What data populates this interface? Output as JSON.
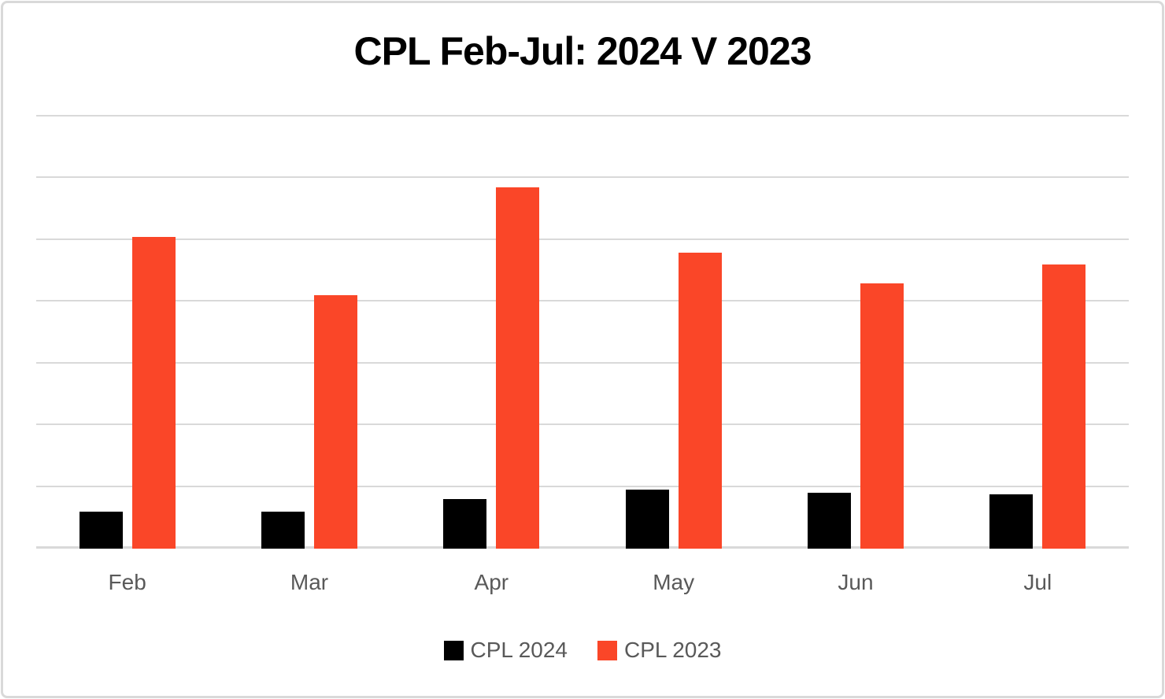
{
  "chart_data": {
    "type": "bar",
    "title": "CPL Feb-Jul: 2024 V 2023",
    "categories": [
      "Feb",
      "Mar",
      "Apr",
      "May",
      "Jun",
      "Jul"
    ],
    "series": [
      {
        "name": "CPL 2024",
        "color": "#000000",
        "values": [
          0.6,
          0.6,
          0.8,
          0.96,
          0.91,
          0.88
        ]
      },
      {
        "name": "CPL 2023",
        "color": "#FA4628",
        "values": [
          5.05,
          4.1,
          5.85,
          4.8,
          4.3,
          4.6
        ]
      }
    ],
    "xlabel": "",
    "ylabel": "",
    "ylim": [
      0,
      7
    ],
    "y_tick_labels_visible": false,
    "gridlines": {
      "horizontal": true,
      "interval": 1,
      "color": "#D9D9D9"
    },
    "legend_position": "bottom",
    "note": "No y-axis tick labels are shown in the chart; values are estimated in gridline units (1 unit = one horizontal gridline interval)"
  },
  "colors": {
    "background": "#FFFFFF",
    "frame_border": "#D9D9D9",
    "grid": "#D9D9D9",
    "title_text": "#000000",
    "axis_text": "#595959",
    "legend_text": "#595959"
  }
}
